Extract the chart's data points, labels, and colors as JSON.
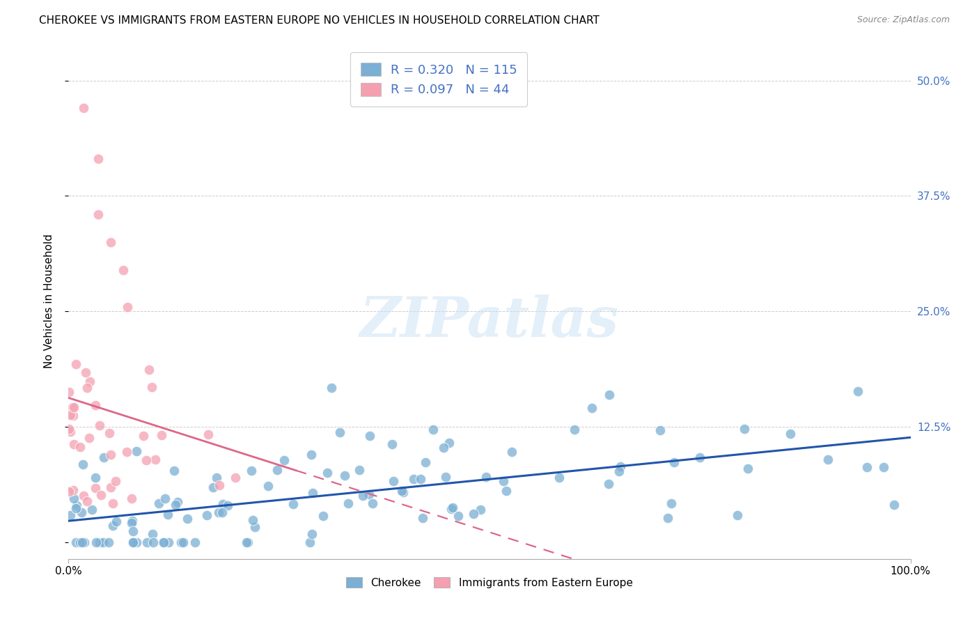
{
  "title": "CHEROKEE VS IMMIGRANTS FROM EASTERN EUROPE NO VEHICLES IN HOUSEHOLD CORRELATION CHART",
  "source": "Source: ZipAtlas.com",
  "ylabel": "No Vehicles in Household",
  "cherokee_color": "#7bafd4",
  "cherokee_edge": "#7bafd4",
  "eastern_europe_color": "#f4a0b0",
  "eastern_europe_edge": "#f4a0b0",
  "trendline_cherokee_color": "#2255aa",
  "trendline_eastern_europe_color": "#dd6688",
  "legend_label_cherokee": "Cherokee",
  "legend_label_eastern_europe": "Immigrants from Eastern Europe",
  "watermark": "ZIPatlas",
  "xlim": [
    0.0,
    1.0
  ],
  "ylim": [
    -0.018,
    0.54
  ],
  "yticks": [
    0.0,
    0.125,
    0.25,
    0.375,
    0.5
  ],
  "ytick_labels": [
    "",
    "12.5%",
    "25.0%",
    "37.5%",
    "50.0%"
  ],
  "title_fontsize": 11,
  "axis_fontsize": 11
}
